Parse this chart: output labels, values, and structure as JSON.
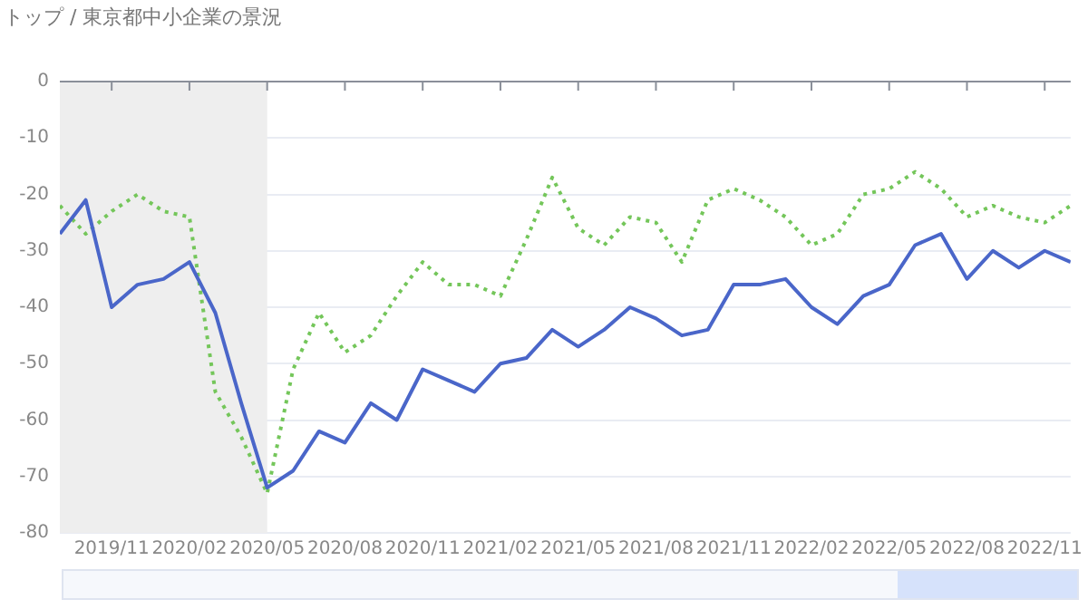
{
  "chart_data": {
    "type": "line",
    "title": "トップ / 東京都中小企業の景況",
    "x": [
      "2019-09",
      "2019-10",
      "2019-11",
      "2019-12",
      "2020-01",
      "2020-02",
      "2020-03",
      "2020-04",
      "2020-05",
      "2020-06",
      "2020-07",
      "2020-08",
      "2020-09",
      "2020-10",
      "2020-11",
      "2020-12",
      "2021-01",
      "2021-02",
      "2021-03",
      "2021-04",
      "2021-05",
      "2021-06",
      "2021-07",
      "2021-08",
      "2021-09",
      "2021-10",
      "2021-11",
      "2021-12",
      "2022-01",
      "2022-02",
      "2022-03",
      "2022-04",
      "2022-05",
      "2022-06",
      "2022-07",
      "2022-08",
      "2022-09",
      "2022-10",
      "2022-11",
      "2022-12"
    ],
    "series": [
      {
        "color": "#4a66c9",
        "line_style": "solid",
        "values": [
          -27,
          -21,
          -40,
          -36,
          -35,
          -32,
          -41,
          -57,
          -72,
          -69,
          -62,
          -64,
          -57,
          -60,
          -51,
          -53,
          -55,
          -50,
          -49,
          -44,
          -47,
          -44,
          -40,
          -42,
          -45,
          -44,
          -36,
          -36,
          -35,
          -40,
          -43,
          -38,
          -36,
          -29,
          -27,
          -35,
          -30,
          -33,
          -30,
          -32
        ]
      },
      {
        "color": "#74c65a",
        "line_style": "dotted",
        "values": [
          -22,
          -27,
          -23,
          -20,
          -23,
          -24,
          -55,
          -63,
          -73,
          -51,
          -41,
          -48,
          -45,
          -38,
          -32,
          -36,
          -36,
          -38,
          -28,
          -17,
          -26,
          -29,
          -24,
          -25,
          -32,
          -21,
          -19,
          -21,
          -24,
          -29,
          -27,
          -20,
          -19,
          -16,
          -19,
          -24,
          -22,
          -24,
          -25,
          -22
        ]
      }
    ],
    "xlim": [
      "2019-09",
      "2022-12"
    ],
    "xticks": [
      {
        "value": "2019-11",
        "label": "2019/11"
      },
      {
        "value": "2020-02",
        "label": "2020/02"
      },
      {
        "value": "2020-05",
        "label": "2020/05"
      },
      {
        "value": "2020-08",
        "label": "2020/08"
      },
      {
        "value": "2020-11",
        "label": "2020/11"
      },
      {
        "value": "2021-02",
        "label": "2021/02"
      },
      {
        "value": "2021-05",
        "label": "2021/05"
      },
      {
        "value": "2021-08",
        "label": "2021/08"
      },
      {
        "value": "2021-11",
        "label": "2021/11"
      },
      {
        "value": "2022-02",
        "label": "2022/02"
      },
      {
        "value": "2022-05",
        "label": "2022/05"
      },
      {
        "value": "2022-08",
        "label": "2022/08"
      },
      {
        "value": "2022-11",
        "label": "2022/11"
      }
    ],
    "ylim": [
      -80,
      0
    ],
    "yticks": [
      0,
      -10,
      -20,
      -30,
      -40,
      -50,
      -60,
      -70,
      -80
    ],
    "bands": [
      {
        "axis": "x",
        "from": "2019-09",
        "to": "2020-05",
        "color": "#eeeeee"
      }
    ],
    "grid": "y",
    "legend": false,
    "marker": "none"
  }
}
